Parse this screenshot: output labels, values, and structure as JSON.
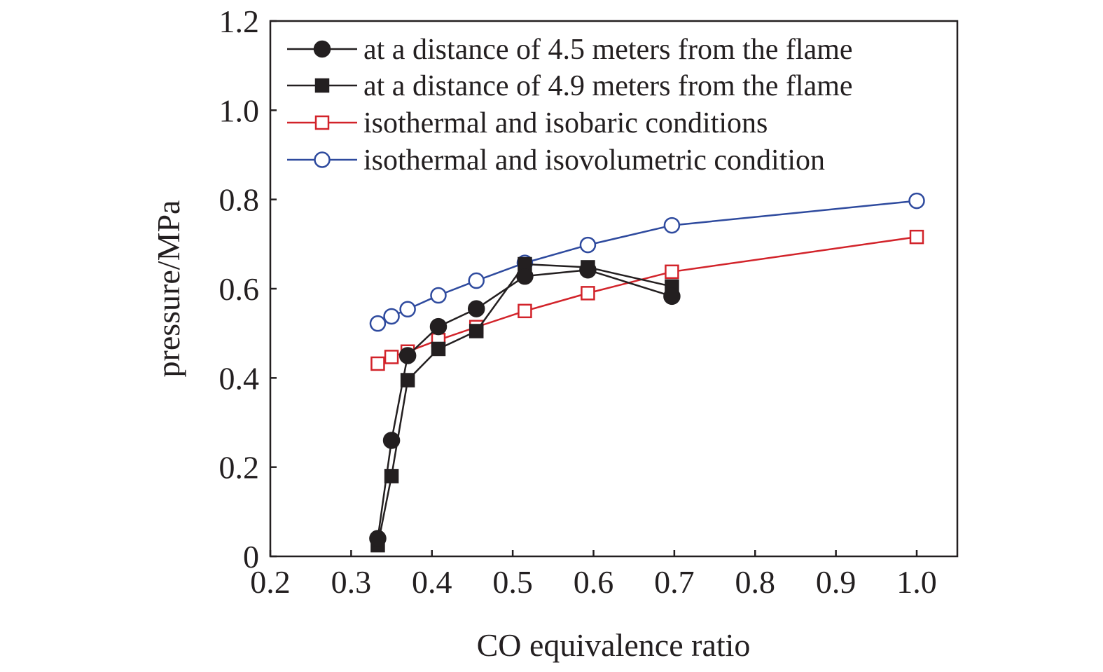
{
  "chart_data": {
    "type": "line",
    "xlabel": "CO equivalence ratio",
    "ylabel": "pressure/MPa",
    "xlim": [
      0.2,
      1.05
    ],
    "ylim": [
      0,
      1.2
    ],
    "xticks": [
      {
        "value": 0.2,
        "label": "0.2"
      },
      {
        "value": 0.3,
        "label": "0.3"
      },
      {
        "value": 0.4,
        "label": "0.4"
      },
      {
        "value": 0.5,
        "label": "0.5"
      },
      {
        "value": 0.6,
        "label": "0.6"
      },
      {
        "value": 0.7,
        "label": "0.7"
      },
      {
        "value": 0.8,
        "label": "0.8"
      },
      {
        "value": 0.9,
        "label": "0.9"
      },
      {
        "value": 1.0,
        "label": "1.0"
      }
    ],
    "yticks": [
      {
        "value": 0,
        "label": "0"
      },
      {
        "value": 0.2,
        "label": "0.2"
      },
      {
        "value": 0.4,
        "label": "0.4"
      },
      {
        "value": 0.6,
        "label": "0.6"
      },
      {
        "value": 0.8,
        "label": "0.8"
      },
      {
        "value": 1.0,
        "label": "1.0"
      },
      {
        "value": 1.2,
        "label": "1.2"
      }
    ],
    "legend_position": "top-left",
    "grid": false,
    "series": [
      {
        "name": "at a distance of 4.5 meters from the flame",
        "color": "#231f20",
        "marker": "circle",
        "filled": true,
        "x": [
          0.333,
          0.35,
          0.37,
          0.408,
          0.455,
          0.515,
          0.593,
          0.697
        ],
        "y": [
          0.04,
          0.26,
          0.45,
          0.515,
          0.555,
          0.628,
          0.642,
          0.583
        ]
      },
      {
        "name": "at a distance of 4.9 meters from the flame",
        "color": "#231f20",
        "marker": "square",
        "filled": true,
        "x": [
          0.333,
          0.35,
          0.37,
          0.408,
          0.455,
          0.515,
          0.593,
          0.697
        ],
        "y": [
          0.025,
          0.18,
          0.395,
          0.465,
          0.505,
          0.655,
          0.648,
          0.605
        ]
      },
      {
        "name": "isothermal and isobaric conditions",
        "color": "#d2232a",
        "marker": "square",
        "filled": false,
        "x": [
          0.333,
          0.35,
          0.37,
          0.408,
          0.455,
          0.515,
          0.593,
          0.697,
          1.0
        ],
        "y": [
          0.432,
          0.447,
          0.459,
          0.485,
          0.514,
          0.55,
          0.59,
          0.638,
          0.716
        ]
      },
      {
        "name": "isothermal and isovolumetric condition",
        "color": "#2e4a9e",
        "marker": "circle",
        "filled": false,
        "x": [
          0.333,
          0.35,
          0.37,
          0.408,
          0.455,
          0.515,
          0.593,
          0.697,
          1.0
        ],
        "y": [
          0.522,
          0.538,
          0.554,
          0.585,
          0.618,
          0.658,
          0.698,
          0.742,
          0.797
        ]
      }
    ]
  }
}
